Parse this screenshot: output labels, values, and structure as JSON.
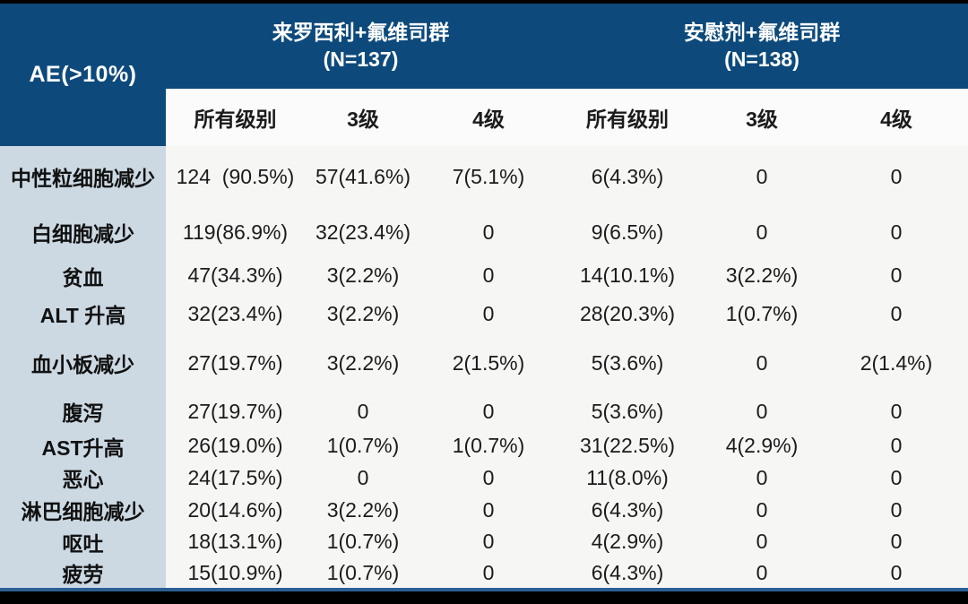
{
  "table": {
    "corner_header": "AE(>10%)",
    "groups": [
      {
        "title": "来罗西利+氟维司群",
        "n": "(N=137)"
      },
      {
        "title": "安慰剂+氟维司群",
        "n": "(N=138)"
      }
    ],
    "sub_headers": [
      "所有级别",
      "3级",
      "4级",
      "所有级别",
      "3级",
      "4级"
    ],
    "rows": [
      {
        "label": "中性粒细胞减少",
        "values": [
          "124  (90.5%)",
          "57(41.6%)",
          "7(5.1%)",
          "6(4.3%)",
          "0",
          "0"
        ]
      },
      {
        "label": "白细胞减少",
        "values": [
          "119(86.9%)",
          "32(23.4%)",
          "0",
          "9(6.5%)",
          "0",
          "0"
        ]
      },
      {
        "label": "贫血",
        "values": [
          "47(34.3%)",
          "3(2.2%)",
          "0",
          "14(10.1%)",
          "3(2.2%)",
          "0"
        ]
      },
      {
        "label": "ALT 升高",
        "values": [
          "32(23.4%)",
          "3(2.2%)",
          "0",
          "28(20.3%)",
          "1(0.7%)",
          "0"
        ]
      },
      {
        "label": "血小板减少",
        "values": [
          "27(19.7%)",
          "3(2.2%)",
          "2(1.5%)",
          "5(3.6%)",
          "0",
          "2(1.4%)"
        ]
      },
      {
        "label": "腹泻",
        "values": [
          "27(19.7%)",
          "0",
          "0",
          "5(3.6%)",
          "0",
          "0"
        ]
      },
      {
        "label": "AST升高",
        "values": [
          "26(19.0%)",
          "1(0.7%)",
          "1(0.7%)",
          "31(22.5%)",
          "4(2.9%)",
          "0"
        ]
      },
      {
        "label": "恶心",
        "values": [
          "24(17.5%)",
          "0",
          "0",
          "11(8.0%)",
          "0",
          "0"
        ]
      },
      {
        "label": "淋巴细胞减少",
        "values": [
          "20(14.6%)",
          "3(2.2%)",
          "0",
          "6(4.3%)",
          "0",
          "0"
        ]
      },
      {
        "label": "呕吐",
        "values": [
          "18(13.1%)",
          "1(0.7%)",
          "0",
          "4(2.9%)",
          "0",
          "0"
        ]
      },
      {
        "label": "疲劳",
        "values": [
          "15(10.9%)",
          "1(0.7%)",
          "0",
          "6(4.3%)",
          "0",
          "0"
        ]
      }
    ],
    "colors": {
      "header_bg": "#0d4a7b",
      "subheader_bg": "#fbfbfb",
      "label_column_bg": "#ccd9e3",
      "data_bg": "#f6f6f5",
      "bottom_rule": "#2a5f93",
      "frame_bar": "#000000",
      "header_text": "#ffffff",
      "body_text": "#1b1b1b"
    }
  }
}
